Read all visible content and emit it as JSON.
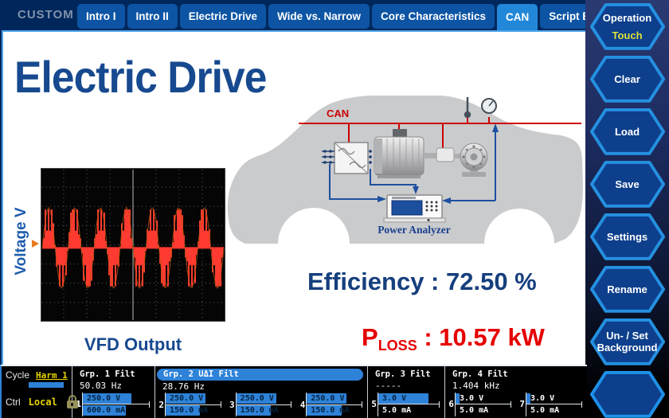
{
  "topbar": {
    "brand": "CUSTOM",
    "tabs": [
      {
        "label": "Intro I",
        "state": "tab-normal"
      },
      {
        "label": "Intro II",
        "state": "tab-normal"
      },
      {
        "label": "Electric Drive",
        "state": "tab-normal"
      },
      {
        "label": "Wide vs. Narrow",
        "state": "tab-normal"
      },
      {
        "label": "Core Characteristics",
        "state": "tab-normal"
      },
      {
        "label": "CAN",
        "state": "tab-active"
      },
      {
        "label": "Script Editor",
        "state": "tab-normal"
      }
    ]
  },
  "sidebar": {
    "buttons": [
      {
        "label": "Operation",
        "sub": "Touch"
      },
      {
        "label": "Clear",
        "sub": ""
      },
      {
        "label": "Load",
        "sub": ""
      },
      {
        "label": "Save",
        "sub": ""
      },
      {
        "label": "Settings",
        "sub": ""
      },
      {
        "label": "Rename",
        "sub": ""
      },
      {
        "label": "Un- / Set Background",
        "sub": ""
      },
      {
        "label": "",
        "sub": ""
      }
    ]
  },
  "content": {
    "title": "Electric Drive",
    "scope_ylabel": "Voltage V",
    "scope_caption": "VFD Output",
    "diagram": {
      "bus_label": "CAN",
      "analyzer_label": "Power Analyzer"
    },
    "efficiency_text": "Efficiency : 72.50 %",
    "ploss_p": "P",
    "ploss_sub": "LOSS",
    "ploss_rest": " : 10.57 kW"
  },
  "chart_data": {
    "type": "line",
    "title": "VFD Output",
    "ylabel": "Voltage V",
    "description": "Oscilloscope-style view of a VFD PWM output voltage: sinusoidally modulated pulse train, about 7 fundamental cycles visible, solid center time cursor, dotted 8x8 graticule, no numeric axis labels shown",
    "series": [
      {
        "name": "VFD output voltage",
        "waveform": "pwm_sine",
        "cycles": 7,
        "amplitude_rel": 0.25,
        "color": "#ff3a30"
      }
    ],
    "grid": {
      "cols": 8,
      "rows": 8,
      "style": "dotted"
    },
    "mid_rel": 0.52,
    "trigger_marker": {
      "side": "left",
      "rel_y": 0.52,
      "color": "#e87a20"
    }
  },
  "statusbar": {
    "cycle_label": "Cycle",
    "cycle_value": "Harm 1",
    "ctrl_label": "Ctrl",
    "ctrl_value": "Local",
    "lock_icon": "padlock",
    "groups": [
      {
        "name": "Grp. 1 Filt",
        "freq": "50.03 Hz"
      },
      {
        "name": "Grp. 2 UΔI Filt",
        "freq": "28.76 Hz"
      },
      {
        "name": "Grp. 3 Filt",
        "freq": "-----"
      },
      {
        "name": "Grp. 4 Filt",
        "freq": "1.404 kHz"
      }
    ],
    "channels": [
      {
        "num": "1",
        "v": "250.0 V",
        "a": "600.0 mA",
        "v_bar": 76,
        "a_bar": 68,
        "v_cls": "dark",
        "a_cls": "dark"
      },
      {
        "num": "2",
        "v": "250.0 V",
        "a": "150.0 mA",
        "v_bar": 76,
        "a_bar": 66,
        "v_cls": "dark",
        "a_cls": "dark"
      },
      {
        "num": "3",
        "v": "250.0 V",
        "a": "150.0 mA",
        "v_bar": 76,
        "a_bar": 66,
        "v_cls": "dark",
        "a_cls": "dark"
      },
      {
        "num": "4",
        "v": "250.0 V",
        "a": "150.0 mA",
        "v_bar": 76,
        "a_bar": 66,
        "v_cls": "dark",
        "a_cls": "dark"
      },
      {
        "num": "5",
        "v": "3.0 V",
        "a": "5.0 mA",
        "v_bar": 86,
        "a_bar": 0,
        "v_cls": "dark",
        "a_cls": "light"
      },
      {
        "num": "6",
        "v": "3.0 V",
        "a": "5.0 mA",
        "v_bar": 8,
        "a_bar": 0,
        "v_cls": "light",
        "a_cls": "light"
      },
      {
        "num": "7",
        "v": "3.0 V",
        "a": "5.0 mA",
        "v_bar": 8,
        "a_bar": 0,
        "v_cls": "light",
        "a_cls": "light"
      }
    ]
  },
  "colors": {
    "accent_blue": "#2287d8",
    "bar_blue": "#2e82d8",
    "status_yellow": "#e8d400",
    "alert_red": "#e60000",
    "title_blue": "#17498f",
    "can_red": "#cc0000"
  }
}
